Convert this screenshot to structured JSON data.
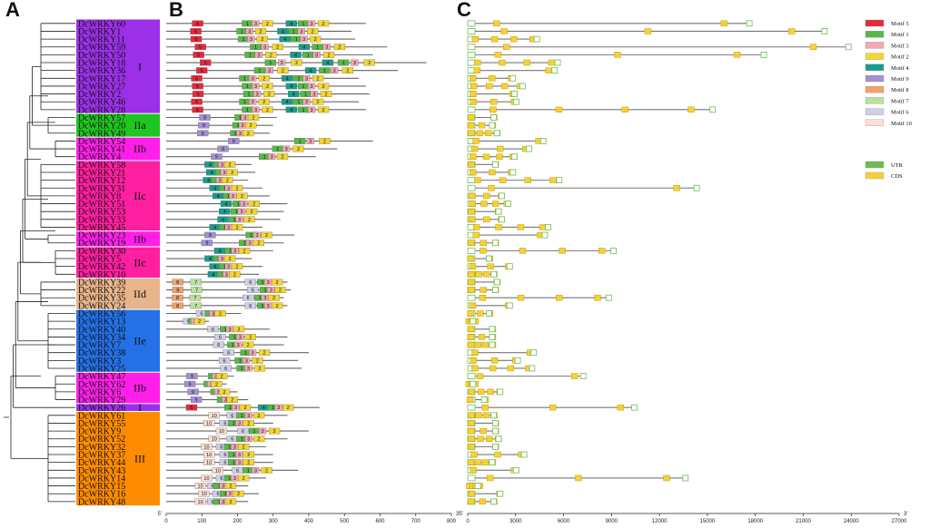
{
  "panels": {
    "a": "A",
    "b": "B",
    "c": "C"
  },
  "genes": [
    "DcWRKY60",
    "DcWRKY1",
    "DcWRKY11",
    "DcWRKY59",
    "DcWRKY50",
    "DcWRKY18",
    "DcWRKY36",
    "DcWRKY17",
    "DcWRKY27",
    "DcWRKY2",
    "DcWRKY46",
    "DcWRKY28",
    "DcWRKY57",
    "DcWRKY20",
    "DcWRKY49",
    "DcWRKY54",
    "DcWRKY41",
    "DcWRKY4",
    "DcWRKY58",
    "DcWRKY21",
    "DcWRKY12",
    "DcWRKY31",
    "DcWRKY8",
    "DcWRKY51",
    "DcWRKY53",
    "DcWRKY33",
    "DcWRKY45",
    "DcWRKY23",
    "DcWRKY19",
    "DcWRKY30",
    "DcWRKY5",
    "DcWRKY42",
    "DcWRKY10",
    "DcWRKY39",
    "DcWRKY22",
    "DcWRKY35",
    "DcWRKY24",
    "DcWRKY56",
    "DcWRKY13",
    "DcWRKY40",
    "DcWRKY34",
    "DcWRKY7",
    "DcWRKY38",
    "DcWRKY3",
    "DcWRKY25",
    "DcWRKY47",
    "DcWRKY62",
    "DcWRKY6",
    "DcWRKY29",
    "DcWRKY26",
    "DcWRKY61",
    "DcWRKY55",
    "DcWRKY9",
    "DcWRKY52",
    "DcWRKY32",
    "DcWRKY37",
    "DcWRKY44",
    "DcWRKY43",
    "DcWRKY14",
    "DcWRKY15",
    "DcWRKY16",
    "DcWRKY48"
  ],
  "groups": [
    {
      "label": "I",
      "start": 0,
      "end": 11,
      "color": "#9b30e8"
    },
    {
      "label": "IIa",
      "start": 12,
      "end": 14,
      "color": "#1fc61f"
    },
    {
      "label": "IIb",
      "start": 15,
      "end": 17,
      "color": "#ff1fe8"
    },
    {
      "label": "IIc",
      "start": 18,
      "end": 26,
      "color": "#ff1fa0"
    },
    {
      "label": "IIb",
      "start": 27,
      "end": 28,
      "color": "#ff1fe8"
    },
    {
      "label": "IIc",
      "start": 29,
      "end": 32,
      "color": "#ff1fa0"
    },
    {
      "label": "IId",
      "start": 33,
      "end": 36,
      "color": "#e8b48a"
    },
    {
      "label": "IIe",
      "start": 37,
      "end": 44,
      "color": "#2470e6"
    },
    {
      "label": "IIb",
      "start": 45,
      "end": 48,
      "color": "#ff1fe8"
    },
    {
      "label": "I",
      "start": 49,
      "end": 49,
      "color": "#9b30e8"
    },
    {
      "label": "III",
      "start": 50,
      "end": 61,
      "color": "#ff8c00"
    }
  ],
  "protein_lengths": [
    560,
    520,
    530,
    620,
    580,
    730,
    650,
    540,
    560,
    570,
    540,
    560,
    310,
    300,
    290,
    580,
    480,
    420,
    240,
    250,
    230,
    270,
    290,
    340,
    330,
    320,
    270,
    360,
    330,
    300,
    240,
    270,
    260,
    340,
    350,
    330,
    340,
    210,
    120,
    290,
    340,
    330,
    400,
    370,
    380,
    190,
    170,
    200,
    230,
    430,
    340,
    300,
    400,
    340,
    280,
    300,
    300,
    370,
    280,
    230,
    260,
    230
  ],
  "motif_legend": [
    {
      "id": 5,
      "label": "Motif 5",
      "color": "#e8283c"
    },
    {
      "id": 1,
      "label": "Motif 1",
      "color": "#58b847"
    },
    {
      "id": 3,
      "label": "Motif 3",
      "color": "#f7a8b4"
    },
    {
      "id": 2,
      "label": "Motif 2",
      "color": "#f5d631"
    },
    {
      "id": 4,
      "label": "Motif 4",
      "color": "#1a9c8c"
    },
    {
      "id": 9,
      "label": "Motif 9",
      "color": "#a58fd6"
    },
    {
      "id": 8,
      "label": "Motif 8",
      "color": "#f3a267"
    },
    {
      "id": 7,
      "label": "Motif 7",
      "color": "#b9e39c"
    },
    {
      "id": 6,
      "label": "Motif 6",
      "color": "#cfcfe8"
    },
    {
      "id": 10,
      "label": "Motif 10",
      "color": "#fde0d2"
    }
  ],
  "structure_legend": [
    {
      "label": "UTR",
      "color": "#6bbd4f"
    },
    {
      "label": "CDS",
      "color": "#f6d134"
    }
  ],
  "axis_b": {
    "ticks": [
      0,
      100,
      200,
      300,
      400,
      500,
      600,
      700,
      800
    ],
    "min": 0,
    "max": 800,
    "left_end": "5'",
    "right_end": "3'"
  },
  "axis_c": {
    "ticks": [
      0,
      3000,
      6000,
      9000,
      12000,
      15000,
      18000,
      21000,
      24000,
      27000
    ],
    "min": 0,
    "max": 27000,
    "left_end": "5'",
    "right_end": "3'"
  },
  "gene_lengths": [
    17800,
    22500,
    4500,
    24000,
    18700,
    5800,
    5600,
    3000,
    3600,
    3100,
    3200,
    15500,
    1800,
    1700,
    2000,
    4900,
    4000,
    3100,
    1900,
    3000,
    5900,
    14500,
    2300,
    2700,
    2100,
    2300,
    5200,
    5000,
    1900,
    9300,
    1500,
    2800,
    1800,
    2000,
    1900,
    9000,
    2800,
    1500,
    500,
    1700,
    1700,
    1700,
    4300,
    3300,
    4200,
    7400,
    500,
    2200,
    1200,
    10600,
    1800,
    1900,
    1900,
    2100,
    1900,
    3700,
    1700,
    3200,
    13800,
    800,
    2200,
    1800
  ],
  "motifs_summary": {
    "group_I": "5, 1-3-2, 4-1-3-2",
    "group_IIa_IIb": "9, 4-1-3-2",
    "group_IIc": "4-1-3-2",
    "group_IId": "8, 7, 6-1-3-2",
    "group_IIe": "6-1-3-2",
    "group_III": "10, 6, 1-3-2"
  }
}
